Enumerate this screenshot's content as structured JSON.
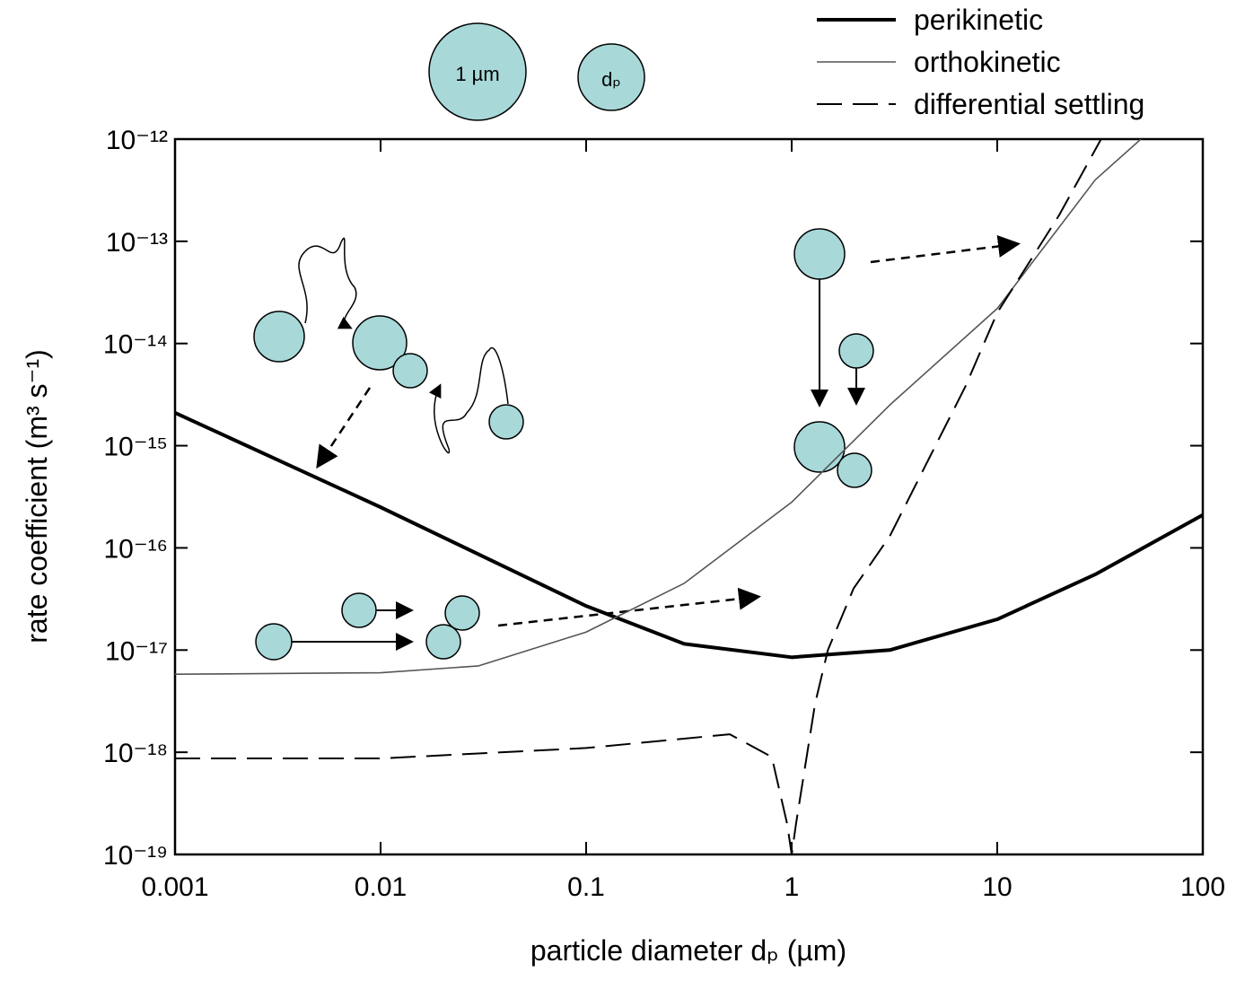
{
  "chart_data": {
    "type": "line",
    "x_label": "particle diameter dₚ (µm)",
    "y_label": "rate coefficient (m³ s⁻¹)",
    "annotations": [
      "1 µm",
      "dₚ"
    ],
    "log_x": true,
    "log_y": true,
    "xlim": [
      0.001,
      100
    ],
    "xticks": [
      0.001,
      0.01,
      0.1,
      1,
      10,
      100
    ],
    "ylim": [
      1e-19,
      1e-12
    ],
    "yticks": [
      {
        "value": 1e-19,
        "label": "10⁻¹⁹"
      },
      {
        "value": 1e-18,
        "label": "10⁻¹⁸"
      },
      {
        "value": 1e-17,
        "label": "10⁻¹⁷"
      },
      {
        "value": 1e-16,
        "label": "10⁻¹⁶"
      },
      {
        "value": 1e-15,
        "label": "10⁻¹⁵"
      },
      {
        "value": 1e-14,
        "label": "10⁻¹⁴"
      },
      {
        "value": 1e-13,
        "label": "10⁻¹³"
      },
      {
        "value": 1e-12,
        "label": "10⁻¹²"
      }
    ],
    "legend": "top-right",
    "series": [
      {
        "name": "perikinetic",
        "color": "#000000",
        "line_width": 4,
        "dash": "none",
        "x": [
          0.001,
          0.01,
          0.1,
          0.3,
          1,
          3,
          10,
          30,
          100
        ],
        "values": [
          2.1e-15,
          2.5e-16,
          2.7e-17,
          1.15e-17,
          8.5e-18,
          1e-17,
          2e-17,
          5.5e-17,
          2.1e-16
        ]
      },
      {
        "name": "orthokinetic",
        "color": "#555555",
        "line_width": 1.6,
        "dash": "none",
        "x": [
          0.001,
          0.01,
          0.03,
          0.1,
          0.3,
          1,
          3,
          10,
          30,
          50
        ],
        "values": [
          5.8e-18,
          6e-18,
          7e-18,
          1.5e-17,
          4.5e-17,
          2.8e-16,
          2.5e-15,
          2.2e-14,
          4e-13,
          1e-12
        ]
      },
      {
        "name": "differential settling",
        "color": "#000000",
        "line_width": 2,
        "dash": "28 12",
        "x": [
          0.001,
          0.01,
          0.1,
          0.5,
          0.8,
          0.95,
          1,
          1.05,
          1.3,
          1.5,
          2,
          3,
          7,
          10,
          20,
          32
        ],
        "values": [
          8.7e-19,
          8.7e-19,
          1.1e-18,
          1.5e-18,
          9e-19,
          2e-19,
          1e-19,
          2e-19,
          3e-18,
          1e-17,
          4e-17,
          1.3e-16,
          3.8e-15,
          2e-14,
          1.8e-13,
          1e-12
        ]
      }
    ]
  }
}
